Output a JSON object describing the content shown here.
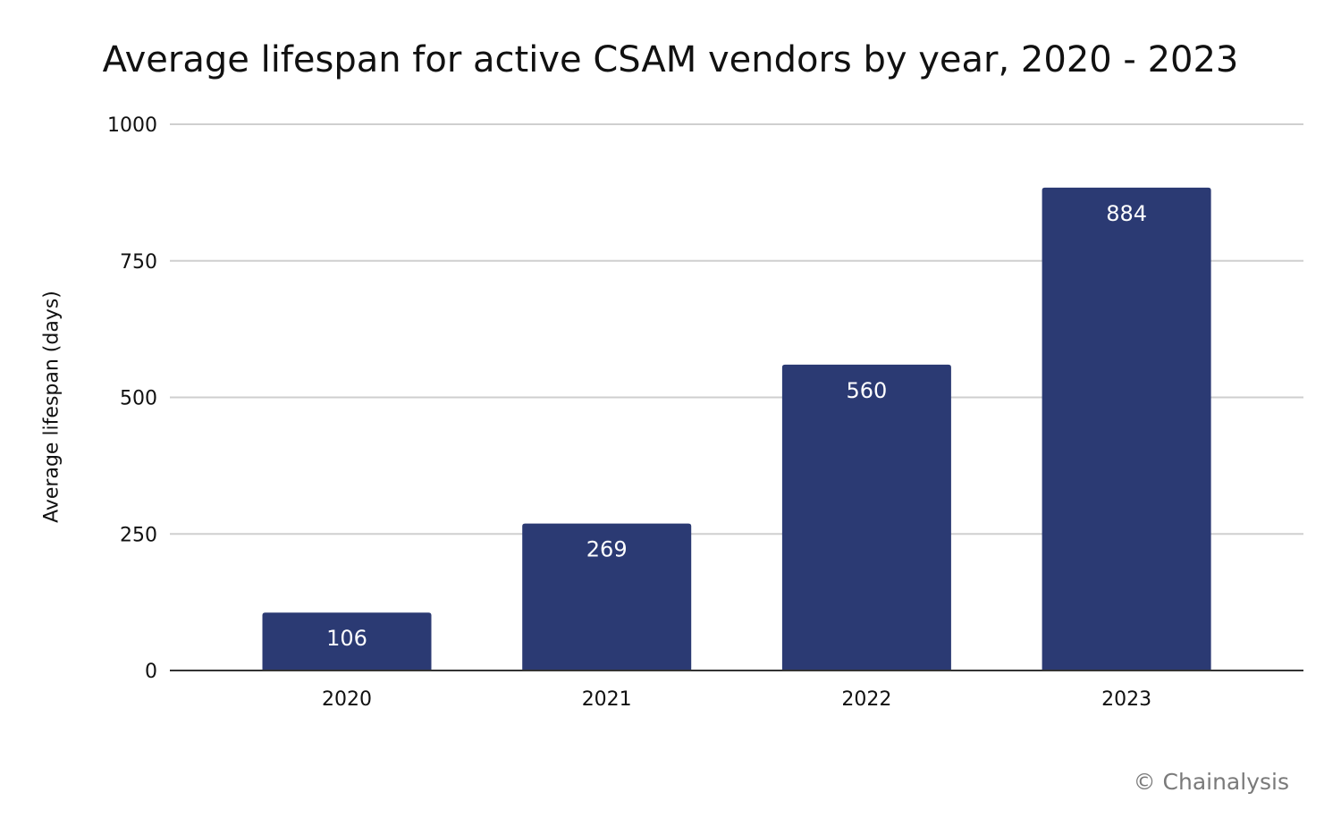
{
  "chart_data": {
    "type": "bar",
    "title": "Average lifespan for active CSAM vendors by year, 2020 - 2023",
    "xlabel": "",
    "ylabel": "Average lifespan (days)",
    "categories": [
      "2020",
      "2021",
      "2022",
      "2023"
    ],
    "values": [
      106,
      269,
      560,
      884
    ],
    "ylim": [
      0,
      1000
    ],
    "yticks": [
      0,
      250,
      500,
      750,
      1000
    ],
    "grid": true,
    "legend": "none",
    "bar_color": "#2b3a73",
    "data_labels": true
  },
  "watermark": "© Chainalysis"
}
